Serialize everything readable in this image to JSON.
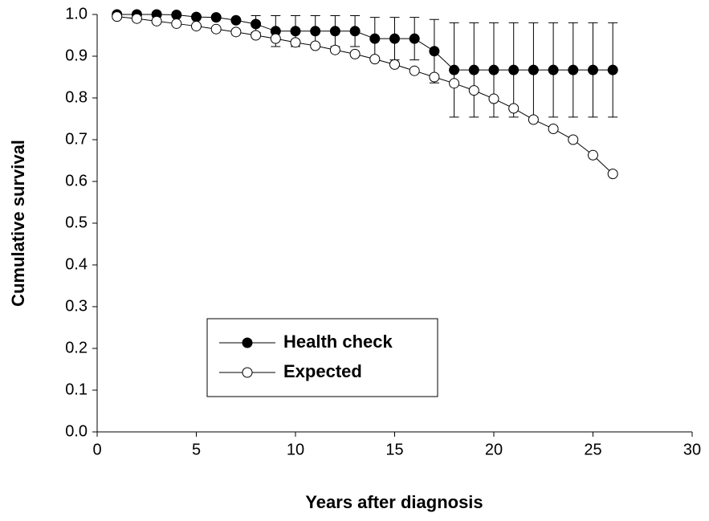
{
  "chart_data": {
    "type": "line",
    "x_label": "Years after diagnosis",
    "y_label": "Cumulative survival",
    "x": [
      1,
      2,
      3,
      4,
      5,
      6,
      7,
      8,
      9,
      10,
      11,
      12,
      13,
      14,
      15,
      16,
      17,
      18,
      19,
      20,
      21,
      22,
      23,
      24,
      25,
      26
    ],
    "series": [
      {
        "name": "Health check",
        "color": "#000000",
        "values": [
          1.0,
          1.0,
          1.0,
          0.999,
          0.994,
          0.993,
          0.986,
          0.977,
          0.96,
          0.96,
          0.96,
          0.96,
          0.96,
          0.942,
          0.942,
          0.942,
          0.912,
          0.867,
          0.867,
          0.867,
          0.867,
          0.867,
          0.867,
          0.867,
          0.867,
          0.867
        ],
        "errors": [
          null,
          null,
          null,
          null,
          null,
          null,
          null,
          0.02,
          0.037,
          0.037,
          0.037,
          0.037,
          0.037,
          0.051,
          0.051,
          0.051,
          0.076,
          0.113,
          0.113,
          0.113,
          0.113,
          0.113,
          0.113,
          0.113,
          0.113,
          0.113
        ]
      },
      {
        "name": "Expected",
        "color": "#ffffff",
        "values": [
          0.995,
          0.99,
          0.984,
          0.978,
          0.972,
          0.965,
          0.958,
          0.95,
          0.942,
          0.933,
          0.925,
          0.915,
          0.905,
          0.893,
          0.88,
          0.865,
          0.85,
          0.835,
          0.818,
          0.798,
          0.775,
          0.748,
          0.726,
          0.7,
          0.663,
          0.618
        ]
      }
    ],
    "xlim": [
      0,
      30
    ],
    "xticks": [
      0,
      5,
      10,
      15,
      20,
      25,
      30
    ],
    "ylim": [
      0,
      1
    ],
    "yticks": [
      {
        "value": 0,
        "label": "0.0"
      },
      {
        "value": 0.1,
        "label": "0.1"
      },
      {
        "value": 0.2,
        "label": "0.2"
      },
      {
        "value": 0.3,
        "label": "0.3"
      },
      {
        "value": 0.4,
        "label": "0.4"
      },
      {
        "value": 0.5,
        "label": "0.5"
      },
      {
        "value": 0.6,
        "label": "0.6"
      },
      {
        "value": 0.7,
        "label": "0.7"
      },
      {
        "value": 0.8,
        "label": "0.8"
      },
      {
        "value": 0.9,
        "label": "0.9"
      },
      {
        "value": 1,
        "label": "1.0"
      }
    ],
    "legend": "lower left"
  }
}
